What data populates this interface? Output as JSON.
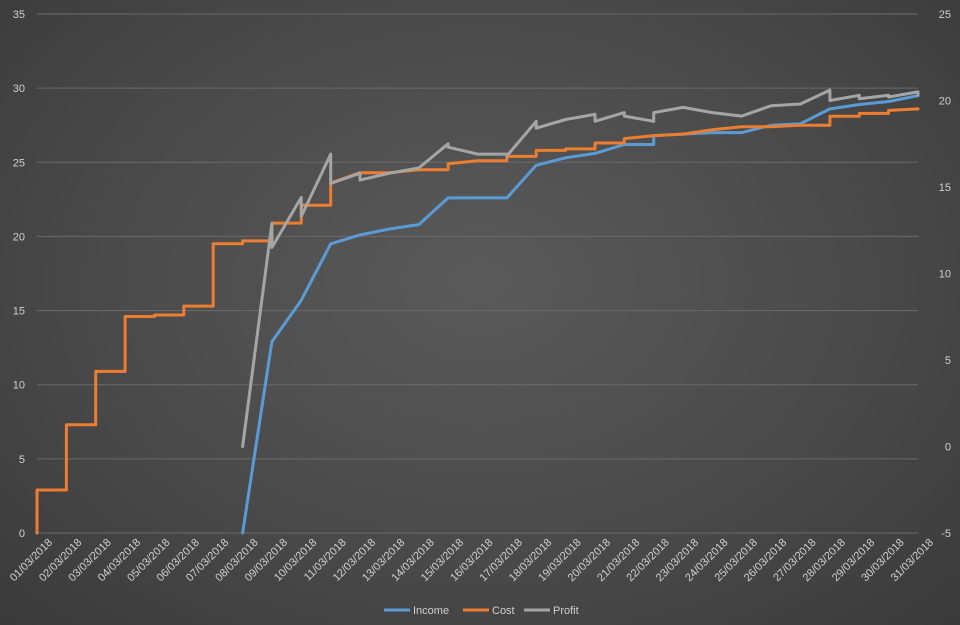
{
  "chart_data": {
    "type": "line",
    "title": "",
    "xlabel": "",
    "ylabel": "",
    "grid": true,
    "legend_position": "bottom",
    "y_left": {
      "min": 0,
      "max": 35,
      "ticks": [
        0,
        5,
        10,
        15,
        20,
        25,
        30,
        35
      ]
    },
    "y_right": {
      "min": -5,
      "max": 25,
      "ticks": [
        -5,
        0,
        5,
        10,
        15,
        20,
        25
      ]
    },
    "categories": [
      "01/03/2018",
      "02/03/2018",
      "03/03/2018",
      "04/03/2018",
      "05/03/2018",
      "06/03/2018",
      "07/03/2018",
      "08/03/2018",
      "09/03/2018",
      "10/03/2018",
      "11/03/2018",
      "12/03/2018",
      "13/03/2018",
      "14/03/2018",
      "15/03/2018",
      "16/03/2018",
      "17/03/2018",
      "18/03/2018",
      "19/03/2018",
      "20/03/2018",
      "21/03/2018",
      "22/03/2018",
      "23/03/2018",
      "24/03/2018",
      "25/03/2018",
      "26/03/2018",
      "27/03/2018",
      "28/03/2018",
      "29/03/2018",
      "30/03/2018",
      "31/03/2018"
    ],
    "series": [
      {
        "name": "Income",
        "color": "#5b9bd5",
        "axis": "left",
        "points": [
          [
            "08/03/2018",
            0
          ],
          [
            "09/03/2018",
            12.9
          ],
          [
            "10/03/2018",
            15.7
          ],
          [
            "11/03/2018",
            19.5
          ],
          [
            "12/03/2018",
            20.1
          ],
          [
            "13/03/2018",
            20.5
          ],
          [
            "14/03/2018",
            20.8
          ],
          [
            "15/03/2018",
            22.6
          ],
          [
            "16/03/2018",
            22.6
          ],
          [
            "17/03/2018",
            22.6
          ],
          [
            "18/03/2018",
            24.8
          ],
          [
            "19/03/2018",
            25.3
          ],
          [
            "20/03/2018",
            25.6
          ],
          [
            "21/03/2018",
            26.2
          ],
          [
            "22/03/2018",
            26.2
          ],
          [
            "22/03/2018",
            26.8
          ],
          [
            "23/03/2018",
            26.9
          ],
          [
            "24/03/2018",
            27.0
          ],
          [
            "25/03/2018",
            27.0
          ],
          [
            "26/03/2018",
            27.5
          ],
          [
            "27/03/2018",
            27.6
          ],
          [
            "28/03/2018",
            28.6
          ],
          [
            "29/03/2018",
            28.9
          ],
          [
            "30/03/2018",
            29.1
          ],
          [
            "31/03/2018",
            29.5
          ]
        ]
      },
      {
        "name": "Cost",
        "color": "#ed7d31",
        "axis": "left",
        "points": [
          [
            "01/03/2018",
            0
          ],
          [
            "01/03/2018",
            2.9
          ],
          [
            "02/03/2018",
            2.9
          ],
          [
            "02/03/2018",
            7.3
          ],
          [
            "03/03/2018",
            7.3
          ],
          [
            "03/03/2018",
            10.9
          ],
          [
            "04/03/2018",
            10.9
          ],
          [
            "04/03/2018",
            14.6
          ],
          [
            "05/03/2018",
            14.6
          ],
          [
            "05/03/2018",
            14.7
          ],
          [
            "06/03/2018",
            14.7
          ],
          [
            "06/03/2018",
            15.3
          ],
          [
            "07/03/2018",
            15.3
          ],
          [
            "07/03/2018",
            19.5
          ],
          [
            "08/03/2018",
            19.5
          ],
          [
            "08/03/2018",
            19.7
          ],
          [
            "09/03/2018",
            19.7
          ],
          [
            "09/03/2018",
            20.9
          ],
          [
            "10/03/2018",
            20.9
          ],
          [
            "10/03/2018",
            22.1
          ],
          [
            "11/03/2018",
            22.1
          ],
          [
            "11/03/2018",
            23.6
          ],
          [
            "12/03/2018",
            24.3
          ],
          [
            "13/03/2018",
            24.3
          ],
          [
            "14/03/2018",
            24.5
          ],
          [
            "15/03/2018",
            24.5
          ],
          [
            "15/03/2018",
            24.9
          ],
          [
            "16/03/2018",
            25.1
          ],
          [
            "17/03/2018",
            25.1
          ],
          [
            "17/03/2018",
            25.4
          ],
          [
            "18/03/2018",
            25.4
          ],
          [
            "18/03/2018",
            25.8
          ],
          [
            "19/03/2018",
            25.8
          ],
          [
            "19/03/2018",
            25.9
          ],
          [
            "20/03/2018",
            25.9
          ],
          [
            "20/03/2018",
            26.3
          ],
          [
            "21/03/2018",
            26.3
          ],
          [
            "21/03/2018",
            26.6
          ],
          [
            "22/03/2018",
            26.8
          ],
          [
            "23/03/2018",
            26.9
          ],
          [
            "24/03/2018",
            27.2
          ],
          [
            "25/03/2018",
            27.4
          ],
          [
            "26/03/2018",
            27.4
          ],
          [
            "27/03/2018",
            27.5
          ],
          [
            "28/03/2018",
            27.5
          ],
          [
            "28/03/2018",
            28.1
          ],
          [
            "29/03/2018",
            28.1
          ],
          [
            "29/03/2018",
            28.3
          ],
          [
            "30/03/2018",
            28.3
          ],
          [
            "30/03/2018",
            28.5
          ],
          [
            "31/03/2018",
            28.6
          ]
        ]
      },
      {
        "name": "Profit",
        "color": "#a5a5a5",
        "axis": "right",
        "points": [
          [
            "08/03/2018",
            0
          ],
          [
            "09/03/2018",
            12.9
          ],
          [
            "09/03/2018",
            11.5
          ],
          [
            "10/03/2018",
            14.4
          ],
          [
            "10/03/2018",
            13.3
          ],
          [
            "11/03/2018",
            16.9
          ],
          [
            "11/03/2018",
            15.2
          ],
          [
            "12/03/2018",
            15.8
          ],
          [
            "12/03/2018",
            15.4
          ],
          [
            "13/03/2018",
            15.8
          ],
          [
            "14/03/2018",
            16.1
          ],
          [
            "15/03/2018",
            17.5
          ],
          [
            "15/03/2018",
            17.3
          ],
          [
            "16/03/2018",
            16.9
          ],
          [
            "17/03/2018",
            16.9
          ],
          [
            "17/03/2018",
            16.8
          ],
          [
            "18/03/2018",
            18.8
          ],
          [
            "18/03/2018",
            18.4
          ],
          [
            "19/03/2018",
            18.9
          ],
          [
            "20/03/2018",
            19.2
          ],
          [
            "20/03/2018",
            18.8
          ],
          [
            "21/03/2018",
            19.3
          ],
          [
            "21/03/2018",
            19.1
          ],
          [
            "22/03/2018",
            18.8
          ],
          [
            "22/03/2018",
            19.3
          ],
          [
            "23/03/2018",
            19.6
          ],
          [
            "24/03/2018",
            19.3
          ],
          [
            "25/03/2018",
            19.1
          ],
          [
            "26/03/2018",
            19.7
          ],
          [
            "27/03/2018",
            19.8
          ],
          [
            "28/03/2018",
            20.6
          ],
          [
            "28/03/2018",
            20.0
          ],
          [
            "29/03/2018",
            20.3
          ],
          [
            "29/03/2018",
            20.1
          ],
          [
            "30/03/2018",
            20.3
          ],
          [
            "30/03/2018",
            20.2
          ],
          [
            "31/03/2018",
            20.5
          ],
          [
            "31/03/2018",
            20.3
          ]
        ]
      }
    ]
  }
}
